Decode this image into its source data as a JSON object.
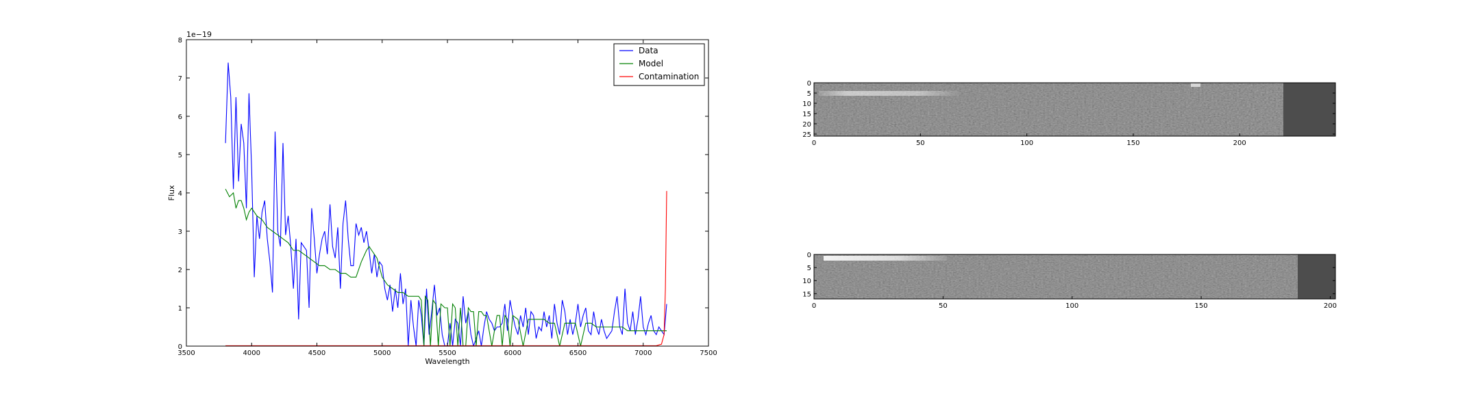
{
  "chart_data": [
    {
      "type": "line",
      "xlabel": "Wavelength",
      "ylabel": "Flux",
      "offset_text": "1e−19",
      "xlim": [
        3500,
        7500
      ],
      "ylim": [
        0,
        8
      ],
      "xticks": [
        3500,
        4000,
        4500,
        5000,
        5500,
        6000,
        6500,
        7000,
        7500
      ],
      "yticks": [
        0,
        1,
        2,
        3,
        4,
        5,
        6,
        7,
        8
      ],
      "grid": false,
      "legend": "top-right",
      "series": [
        {
          "name": "Data",
          "color": "#0000ff",
          "x": [
            3800,
            3820,
            3840,
            3860,
            3880,
            3900,
            3920,
            3940,
            3960,
            3980,
            4000,
            4020,
            4040,
            4060,
            4080,
            4100,
            4120,
            4140,
            4160,
            4180,
            4200,
            4220,
            4240,
            4260,
            4280,
            4300,
            4320,
            4340,
            4360,
            4380,
            4400,
            4420,
            4440,
            4460,
            4480,
            4500,
            4520,
            4540,
            4560,
            4580,
            4600,
            4620,
            4640,
            4660,
            4680,
            4700,
            4720,
            4740,
            4760,
            4780,
            4800,
            4820,
            4840,
            4860,
            4880,
            4900,
            4920,
            4940,
            4960,
            4980,
            5000,
            5020,
            5040,
            5060,
            5080,
            5100,
            5120,
            5140,
            5160,
            5180,
            5200,
            5220,
            5240,
            5260,
            5280,
            5300,
            5320,
            5340,
            5360,
            5380,
            5400,
            5420,
            5440,
            5460,
            5480,
            5500,
            5520,
            5540,
            5560,
            5580,
            5600,
            5620,
            5640,
            5660,
            5680,
            5700,
            5720,
            5740,
            5760,
            5780,
            5800,
            5820,
            5840,
            5860,
            5880,
            5900,
            5920,
            5940,
            5960,
            5980,
            6000,
            6020,
            6040,
            6060,
            6080,
            6100,
            6120,
            6140,
            6160,
            6180,
            6200,
            6220,
            6240,
            6260,
            6280,
            6300,
            6320,
            6340,
            6360,
            6380,
            6400,
            6420,
            6440,
            6460,
            6480,
            6500,
            6520,
            6540,
            6560,
            6580,
            6600,
            6620,
            6640,
            6660,
            6680,
            6700,
            6720,
            6740,
            6760,
            6780,
            6800,
            6820,
            6840,
            6860,
            6880,
            6900,
            6920,
            6940,
            6960,
            6980,
            7000,
            7020,
            7040,
            7060,
            7080,
            7100,
            7120,
            7140,
            7160,
            7180
          ],
          "y": [
            5.3,
            7.4,
            6.5,
            4.1,
            6.5,
            4.3,
            5.8,
            5.3,
            3.6,
            6.6,
            4.6,
            1.8,
            3.4,
            2.8,
            3.5,
            3.8,
            2.8,
            2.2,
            1.4,
            5.6,
            3.0,
            2.6,
            5.3,
            2.9,
            3.4,
            2.6,
            1.5,
            2.8,
            0.7,
            2.7,
            2.6,
            2.5,
            1.0,
            3.6,
            2.8,
            1.9,
            2.4,
            2.8,
            3.0,
            2.4,
            3.7,
            2.6,
            2.3,
            3.1,
            1.5,
            3.2,
            3.8,
            2.8,
            2.1,
            2.1,
            3.2,
            2.9,
            3.1,
            2.7,
            3.0,
            2.5,
            1.9,
            2.4,
            1.8,
            2.2,
            2.1,
            1.5,
            1.2,
            1.6,
            0.9,
            1.5,
            1.0,
            1.9,
            1.1,
            1.5,
            0.0,
            1.2,
            0.5,
            0.0,
            1.2,
            0.8,
            0.0,
            1.5,
            0.3,
            0.9,
            1.6,
            0.8,
            1.0,
            0.3,
            0.0,
            0.0,
            0.6,
            0.0,
            0.7,
            0.6,
            0.0,
            1.3,
            0.6,
            0.9,
            0.3,
            0.0,
            0.2,
            0.4,
            0.0,
            0.5,
            0.9,
            0.7,
            0.6,
            0.4,
            0.5,
            0.5,
            0.6,
            1.1,
            0.4,
            1.2,
            0.8,
            0.5,
            0.3,
            0.8,
            0.5,
            1.0,
            0.3,
            0.9,
            0.8,
            0.2,
            0.5,
            0.4,
            0.9,
            0.5,
            0.8,
            0.2,
            1.1,
            0.6,
            0.3,
            1.2,
            0.9,
            0.3,
            0.7,
            0.3,
            0.6,
            1.1,
            0.5,
            0.8,
            1.0,
            0.4,
            0.3,
            0.9,
            0.5,
            0.3,
            0.7,
            0.4,
            0.2,
            0.3,
            0.4,
            0.9,
            1.3,
            0.5,
            0.3,
            1.5,
            0.6,
            0.4,
            0.9,
            0.3,
            0.7,
            1.3,
            0.5,
            0.3,
            0.6,
            0.8,
            0.4,
            0.3,
            0.5,
            0.4,
            0.3,
            1.1
          ]
        },
        {
          "name": "Model",
          "color": "#008000",
          "x": [
            3800,
            3830,
            3860,
            3880,
            3900,
            3920,
            3940,
            3960,
            3980,
            4000,
            4040,
            4080,
            4120,
            4160,
            4200,
            4240,
            4280,
            4320,
            4360,
            4400,
            4440,
            4480,
            4520,
            4560,
            4600,
            4640,
            4680,
            4720,
            4760,
            4800,
            4840,
            4880,
            4900,
            4920,
            4960,
            5000,
            5040,
            5080,
            5120,
            5160,
            5200,
            5240,
            5280,
            5300,
            5320,
            5330,
            5350,
            5370,
            5390,
            5410,
            5430,
            5450,
            5480,
            5500,
            5520,
            5540,
            5560,
            5580,
            5600,
            5620,
            5640,
            5660,
            5680,
            5700,
            5720,
            5740,
            5760,
            5780,
            5800,
            5840,
            5880,
            5900,
            5920,
            5940,
            5960,
            5980,
            6000,
            6040,
            6080,
            6120,
            6160,
            6200,
            6240,
            6280,
            6320,
            6360,
            6400,
            6440,
            6480,
            6520,
            6560,
            6600,
            6640,
            6680,
            6720,
            6760,
            6800,
            6840,
            6880,
            6920,
            6960,
            7000,
            7040,
            7080,
            7120,
            7160,
            7180
          ],
          "y": [
            4.1,
            3.9,
            4.0,
            3.6,
            3.8,
            3.8,
            3.6,
            3.3,
            3.5,
            3.6,
            3.4,
            3.3,
            3.1,
            3.0,
            2.9,
            2.8,
            2.7,
            2.5,
            2.5,
            2.4,
            2.3,
            2.2,
            2.1,
            2.1,
            2.0,
            2.0,
            1.9,
            1.9,
            1.8,
            1.8,
            2.2,
            2.5,
            2.6,
            2.5,
            2.3,
            1.8,
            1.6,
            1.5,
            1.4,
            1.4,
            1.3,
            1.3,
            1.3,
            1.2,
            0.0,
            1.3,
            1.2,
            0.0,
            1.2,
            1.1,
            0.0,
            1.1,
            1.0,
            1.0,
            0.0,
            1.1,
            1.0,
            0.0,
            1.0,
            0.0,
            0.0,
            1.0,
            0.9,
            0.9,
            0.0,
            0.9,
            0.9,
            0.8,
            0.8,
            0.0,
            0.8,
            0.8,
            0.0,
            0.8,
            0.7,
            0.0,
            0.8,
            0.7,
            0.0,
            0.7,
            0.7,
            0.7,
            0.7,
            0.6,
            0.6,
            0.0,
            0.6,
            0.6,
            0.6,
            0.0,
            0.6,
            0.6,
            0.5,
            0.5,
            0.5,
            0.5,
            0.5,
            0.5,
            0.4,
            0.4,
            0.4,
            0.4,
            0.4,
            0.4,
            0.4,
            0.4,
            0.4
          ]
        },
        {
          "name": "Contamination",
          "color": "#ff0000",
          "x": [
            3800,
            4000,
            4500,
            5000,
            5500,
            6000,
            6500,
            7000,
            7100,
            7140,
            7160,
            7170,
            7180
          ],
          "y": [
            0.01,
            0.01,
            0.01,
            0.01,
            0.01,
            0.01,
            0.01,
            0.01,
            0.01,
            0.05,
            0.3,
            1.5,
            4.05
          ]
        }
      ]
    },
    {
      "type": "heatmap",
      "xticks": [
        0,
        50,
        100,
        150,
        200
      ],
      "yticks": [
        0,
        5,
        10,
        15,
        20,
        25
      ],
      "xlim": [
        0,
        245
      ],
      "ylim": [
        26,
        0
      ],
      "extent_cols": 220,
      "bright_rows": [
        5,
        6
      ],
      "colormap": "gray"
    },
    {
      "type": "heatmap",
      "xticks": [
        0,
        50,
        100,
        150,
        200
      ],
      "yticks": [
        0,
        5,
        10,
        15
      ],
      "xlim": [
        0,
        202
      ],
      "ylim": [
        17,
        0
      ],
      "extent_cols": 188,
      "bright_rows": [
        1,
        2
      ],
      "colormap": "gray"
    }
  ]
}
